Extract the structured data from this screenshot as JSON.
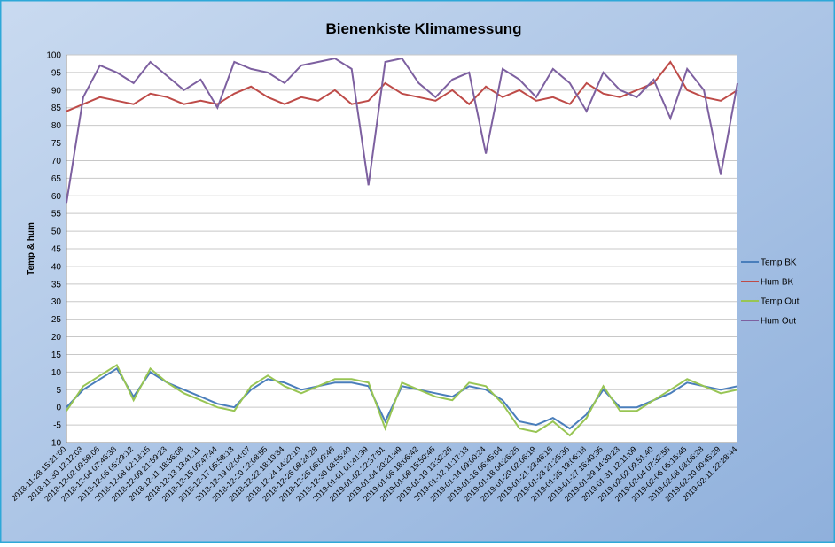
{
  "chart_data": {
    "type": "line",
    "title": "Bienenkiste Klimamessung",
    "y_label": "Temp & hum",
    "categories": [
      "2018-11-28 15:21:00",
      "2018-11-30 12:12:03",
      "2018-12-02 09:58:06",
      "2018-12-04 07:46:38",
      "2018-12-06 05:29:12",
      "2018-12-08 02:13:15",
      "2018-12-09 21:59:23",
      "2018-12-11 18:36:08",
      "2018-12-13 13:41:11",
      "2018-12-15 09:47:44",
      "2018-12-17 05:58:13",
      "2018-12-19 02:04:07",
      "2018-12-20 22:08:55",
      "2018-12-22 18:10:34",
      "2018-12-24 14:22:10",
      "2018-12-26 08:24:28",
      "2018-12-28 06:09:46",
      "2018-12-30 03:55:40",
      "2019-01-01 01:41:39",
      "2019-01-02 22:37:51",
      "2019-01-04 20:21:49",
      "2019-01-06 18:06:42",
      "2019-01-08 15:50:45",
      "2019-01-10 13:32:26",
      "2019-01-12 11:17:13",
      "2019-01-14 09:00:24",
      "2019-01-16 06:45:04",
      "2019-01-18 04:26:26",
      "2019-01-20 02:06:19",
      "2019-01-21 23:46:16",
      "2019-01-23 21:25:36",
      "2019-01-25 19:06:18",
      "2019-01-27 16:40:35",
      "2019-01-29 14:30:23",
      "2019-01-31 12:11:09",
      "2019-02-02 09:51:40",
      "2019-02-04 07:32:58",
      "2019-02-06 05:15:45",
      "2019-02-08 03:06:28",
      "2019-02-10 00:45:29",
      "2019-02-11 22:28:44"
    ],
    "series": [
      {
        "name": "Temp BK",
        "color": "#4a7ebb",
        "values": [
          0,
          5,
          8,
          11,
          3,
          10,
          7,
          5,
          3,
          1,
          0,
          5,
          8,
          7,
          5,
          6,
          7,
          7,
          6,
          -4,
          6,
          5,
          4,
          3,
          6,
          5,
          2,
          -4,
          -5,
          -3,
          -6,
          -2,
          5,
          0,
          0,
          2,
          4,
          7,
          6,
          5,
          6
        ]
      },
      {
        "name": "Hum BK",
        "color": "#be4b48",
        "values": [
          84,
          86,
          88,
          87,
          86,
          89,
          88,
          86,
          87,
          86,
          89,
          91,
          88,
          86,
          88,
          87,
          90,
          86,
          87,
          92,
          89,
          88,
          87,
          90,
          86,
          91,
          88,
          90,
          87,
          88,
          86,
          92,
          89,
          88,
          90,
          92,
          98,
          90,
          88,
          87,
          90
        ]
      },
      {
        "name": "Temp Out",
        "color": "#98c554",
        "values": [
          -1,
          6,
          9,
          12,
          2,
          11,
          7,
          4,
          2,
          0,
          -1,
          6,
          9,
          6,
          4,
          6,
          8,
          8,
          7,
          -6,
          7,
          5,
          3,
          2,
          7,
          6,
          1,
          -6,
          -7,
          -4,
          -8,
          -3,
          6,
          -1,
          -1,
          2,
          5,
          8,
          6,
          4,
          5
        ]
      },
      {
        "name": "Hum Out",
        "color": "#7d60a0",
        "values": [
          58,
          88,
          97,
          95,
          92,
          98,
          94,
          90,
          93,
          85,
          98,
          96,
          95,
          92,
          97,
          98,
          99,
          96,
          63,
          98,
          99,
          92,
          88,
          93,
          95,
          72,
          96,
          93,
          88,
          96,
          92,
          84,
          95,
          90,
          88,
          93,
          82,
          96,
          90,
          66,
          92
        ]
      }
    ],
    "ylim": [
      -10,
      100
    ],
    "yticks": [
      -10,
      -5,
      0,
      5,
      10,
      15,
      20,
      25,
      30,
      35,
      40,
      45,
      50,
      55,
      60,
      65,
      70,
      75,
      80,
      85,
      90,
      95,
      100
    ],
    "grid": true,
    "legend": "right"
  }
}
